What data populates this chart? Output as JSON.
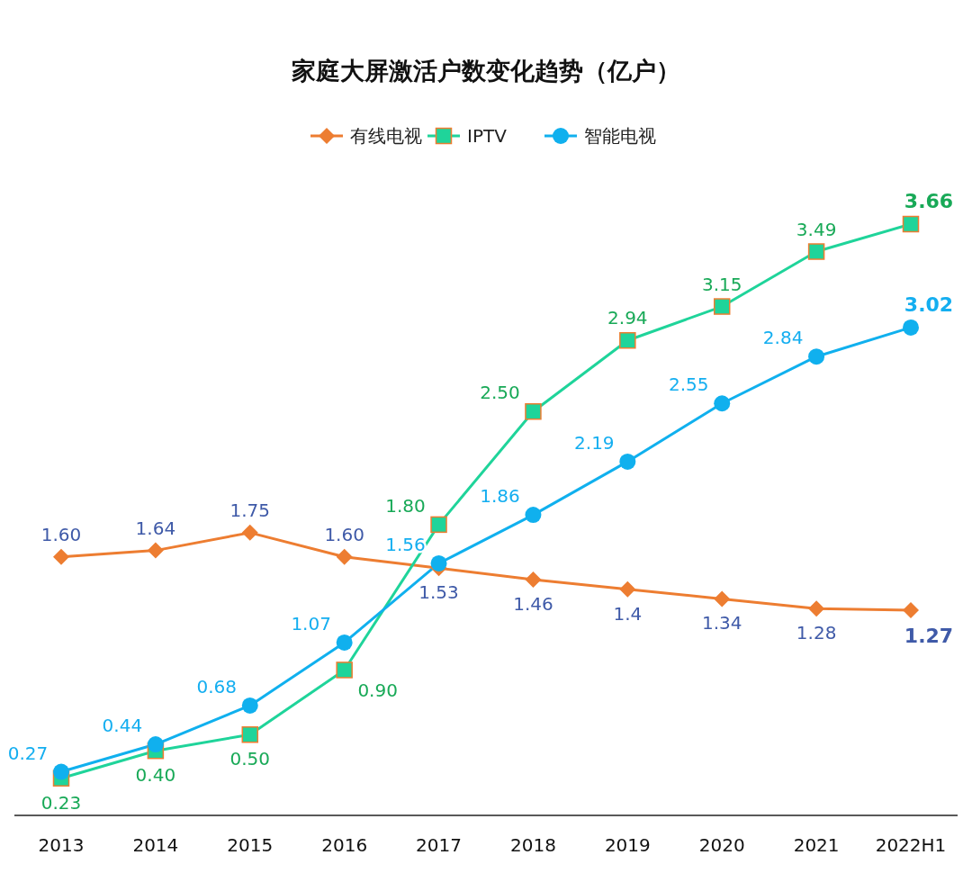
{
  "chart_data": {
    "type": "line",
    "title": "家庭大屏激活户数变化趋势（亿户）",
    "categories": [
      "2013",
      "2014",
      "2015",
      "2016",
      "2017",
      "2018",
      "2019",
      "2020",
      "2021",
      "2022H1"
    ],
    "series": [
      {
        "name": "有线电视",
        "color": "#ed7d31",
        "marker": "diamond",
        "values": [
          1.6,
          1.64,
          1.75,
          1.6,
          1.53,
          1.46,
          1.4,
          1.34,
          1.28,
          1.27
        ],
        "value_labels": [
          "1.60",
          "1.64",
          "1.75",
          "1.60",
          "1.53",
          "1.46",
          "1.4",
          "1.34",
          "1.28",
          "1.27"
        ]
      },
      {
        "name": "IPTV",
        "color": "#1fd49a",
        "marker": "square",
        "values": [
          0.23,
          0.4,
          0.5,
          0.9,
          1.8,
          2.5,
          2.94,
          3.15,
          3.49,
          3.66
        ],
        "value_labels": [
          "0.23",
          "0.40",
          "0.50",
          "0.90",
          "1.80",
          "2.50",
          "2.94",
          "3.15",
          "3.49",
          "3.66"
        ]
      },
      {
        "name": "智能电视",
        "color": "#10b0ee",
        "marker": "circle",
        "values": [
          0.27,
          0.44,
          0.68,
          1.07,
          1.56,
          1.86,
          2.19,
          2.55,
          2.84,
          3.02
        ],
        "value_labels": [
          "0.27",
          "0.44",
          "0.68",
          "1.07",
          "1.56",
          "1.86",
          "2.19",
          "2.55",
          "2.84",
          "3.02"
        ]
      }
    ],
    "relative": false,
    "legend": "top",
    "grid": false
  }
}
